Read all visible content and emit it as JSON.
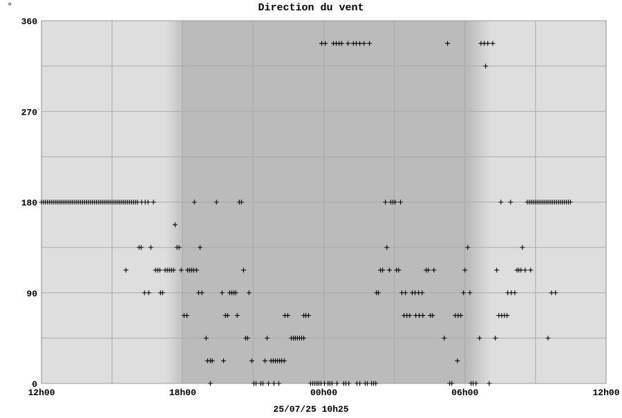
{
  "chart_data": {
    "type": "scatter",
    "title": "Direction du vent",
    "unit_label": "°",
    "xlabel": "25/07/25 10h25",
    "ylabel": "",
    "x_unit": "hours since 12h00",
    "xlim": [
      0,
      24
    ],
    "ylim": [
      0,
      360
    ],
    "x_ticks": [
      {
        "value": 0,
        "label": "12h00"
      },
      {
        "value": 6,
        "label": "18h00"
      },
      {
        "value": 12,
        "label": "00h00"
      },
      {
        "value": 18,
        "label": "06h00"
      },
      {
        "value": 24,
        "label": "12h00"
      }
    ],
    "y_ticks": [
      {
        "value": 0,
        "label": "0"
      },
      {
        "value": 90,
        "label": "90"
      },
      {
        "value": 180,
        "label": "180"
      },
      {
        "value": 270,
        "label": "270"
      },
      {
        "value": 360,
        "label": "360"
      }
    ],
    "grid": true,
    "night_band": {
      "start": 5.3,
      "full_start": 6.1,
      "full_end": 18.1,
      "end": 19.1
    },
    "colors": {
      "day": "#dedede",
      "night": "#bbbbbb",
      "grid": "#a9a9a9",
      "marker": "#000000"
    },
    "runs": [
      {
        "deg": 180,
        "from": 0,
        "to": 4.12,
        "step": 0.0833
      },
      {
        "deg": 180,
        "from": 20.65,
        "to": 22.5,
        "step": 0.0833
      }
    ],
    "series": [
      {
        "deg": 337.5,
        "hours": [
          11.91,
          12.06,
          12.41,
          12.53,
          12.65,
          12.76,
          13.03,
          13.26,
          13.38,
          13.53,
          13.71,
          13.94,
          17.26,
          18.68,
          18.82,
          18.97,
          19.18
        ]
      },
      {
        "deg": 315,
        "hours": [
          18.88
        ]
      },
      {
        "deg": 180,
        "hours": [
          4.26,
          4.41,
          4.53,
          4.76,
          6.5,
          7.44,
          8.41,
          8.5,
          14.62,
          14.85,
          14.94,
          15.03,
          15.26,
          19.53,
          19.94
        ]
      },
      {
        "deg": 157.5,
        "hours": [
          5.68
        ]
      },
      {
        "deg": 135,
        "hours": [
          4.15,
          4.24,
          4.65,
          5.76,
          5.85,
          6.74,
          14.68,
          18.12,
          20.44
        ]
      },
      {
        "deg": 112.5,
        "hours": [
          3.59,
          4.85,
          4.94,
          5.03,
          5.26,
          5.35,
          5.44,
          5.53,
          5.62,
          5.94,
          6.21,
          6.29,
          6.38,
          6.47,
          6.59,
          8.59,
          14.41,
          14.5,
          14.79,
          15.09,
          15.18,
          16.35,
          16.44,
          16.68,
          18.0,
          19.35,
          20.21,
          20.29,
          20.38,
          20.56,
          20.79
        ]
      },
      {
        "deg": 90,
        "hours": [
          4.38,
          4.56,
          5.06,
          5.15,
          6.68,
          6.82,
          7.68,
          8.0,
          8.09,
          8.18,
          8.26,
          8.82,
          14.24,
          14.32,
          15.32,
          15.47,
          15.76,
          15.88,
          16.03,
          16.18,
          17.94,
          18.21,
          19.82,
          19.97,
          20.12,
          21.68,
          21.85
        ]
      },
      {
        "deg": 67.5,
        "hours": [
          6.06,
          6.18,
          7.82,
          7.91,
          8.32,
          10.35,
          10.47,
          11.15,
          11.24,
          11.35,
          15.41,
          15.53,
          15.65,
          15.91,
          16.06,
          16.21,
          16.53,
          16.62,
          17.59,
          17.71,
          17.82,
          19.44,
          19.56,
          19.68,
          19.79
        ]
      },
      {
        "deg": 45,
        "hours": [
          7.0,
          8.68,
          8.76,
          9.59,
          10.62,
          10.71,
          10.79,
          10.88,
          10.97,
          11.06,
          11.15,
          17.12,
          18.62,
          19.29,
          21.53
        ]
      },
      {
        "deg": 22.5,
        "hours": [
          7.06,
          7.18,
          7.26,
          7.74,
          8.94,
          9.5,
          9.76,
          9.85,
          9.94,
          10.03,
          10.12,
          10.21,
          10.32,
          17.68
        ]
      },
      {
        "deg": 0,
        "hours": [
          7.18,
          9.03,
          9.12,
          9.32,
          9.41,
          9.65,
          9.88,
          10.09,
          11.44,
          11.53,
          11.62,
          11.71,
          11.79,
          11.88,
          12.03,
          12.18,
          12.26,
          12.35,
          12.56,
          12.85,
          12.94,
          13.06,
          13.41,
          13.53,
          13.76,
          13.85,
          14.03,
          14.12,
          14.21,
          17.35,
          17.44,
          18.26,
          18.35,
          18.47,
          19.03
        ]
      }
    ]
  }
}
